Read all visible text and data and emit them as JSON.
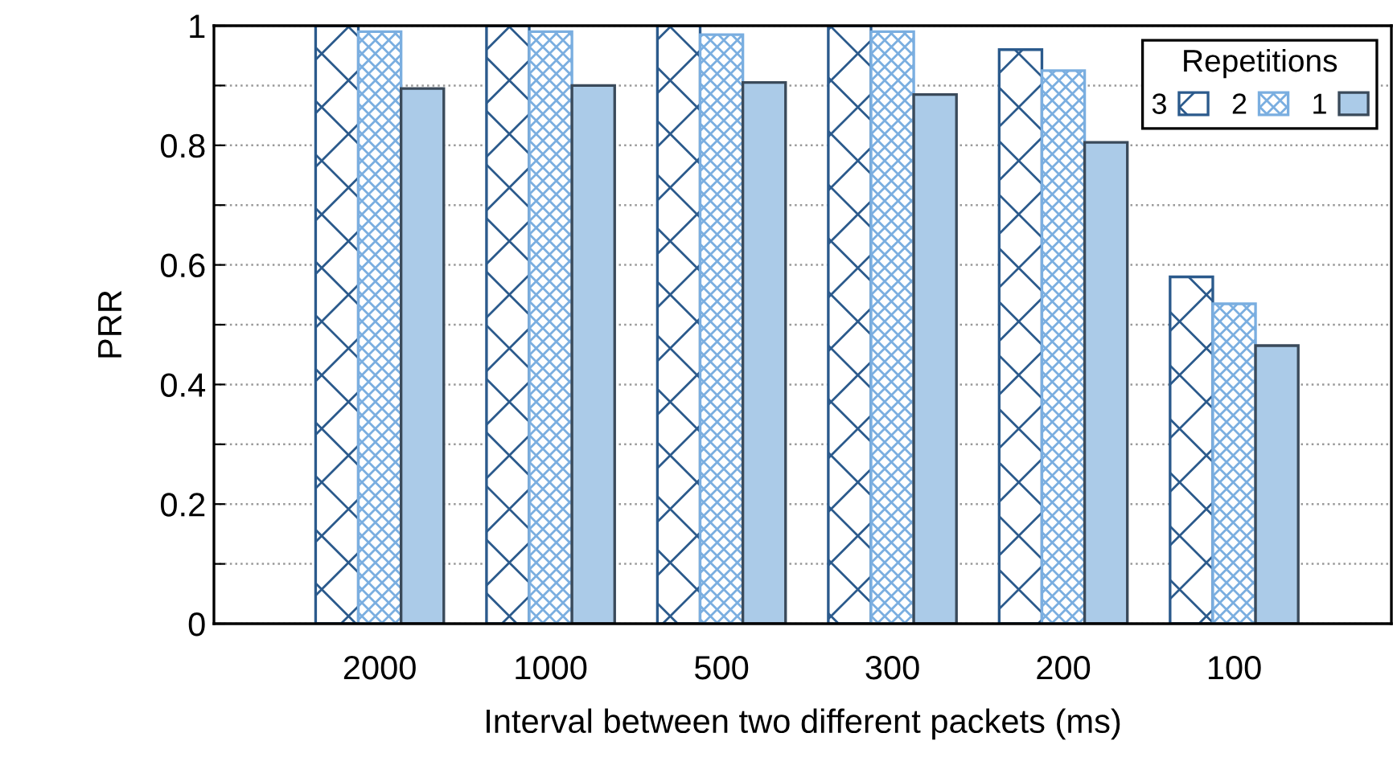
{
  "chart_data": {
    "type": "bar",
    "xlabel": "Interval between two different packets (ms)",
    "ylabel": "PRR",
    "legend_title": "Repetitions",
    "categories": [
      "2000",
      "1000",
      "500",
      "300",
      "200",
      "100"
    ],
    "series": [
      {
        "name": "3",
        "color": "#2b5a8c",
        "values": [
          1.0,
          1.0,
          1.0,
          1.0,
          0.96,
          0.58
        ]
      },
      {
        "name": "2",
        "color": "#7aaee0",
        "values": [
          0.99,
          0.99,
          0.985,
          0.99,
          0.925,
          0.535
        ]
      },
      {
        "name": "1",
        "color": "#abcbe8",
        "values": [
          0.895,
          0.9,
          0.905,
          0.885,
          0.805,
          0.465
        ]
      }
    ],
    "ylim": [
      0,
      1
    ],
    "yticks": [
      0,
      {
        "value": 0.1,
        "label": null
      },
      0.2,
      {
        "value": 0.3,
        "label": null
      },
      0.4,
      {
        "value": 0.5,
        "label": null
      },
      0.6,
      {
        "value": 0.7,
        "label": null
      },
      0.8,
      {
        "value": 0.9,
        "label": null
      },
      1
    ],
    "grid": "y",
    "legend": "top right"
  }
}
